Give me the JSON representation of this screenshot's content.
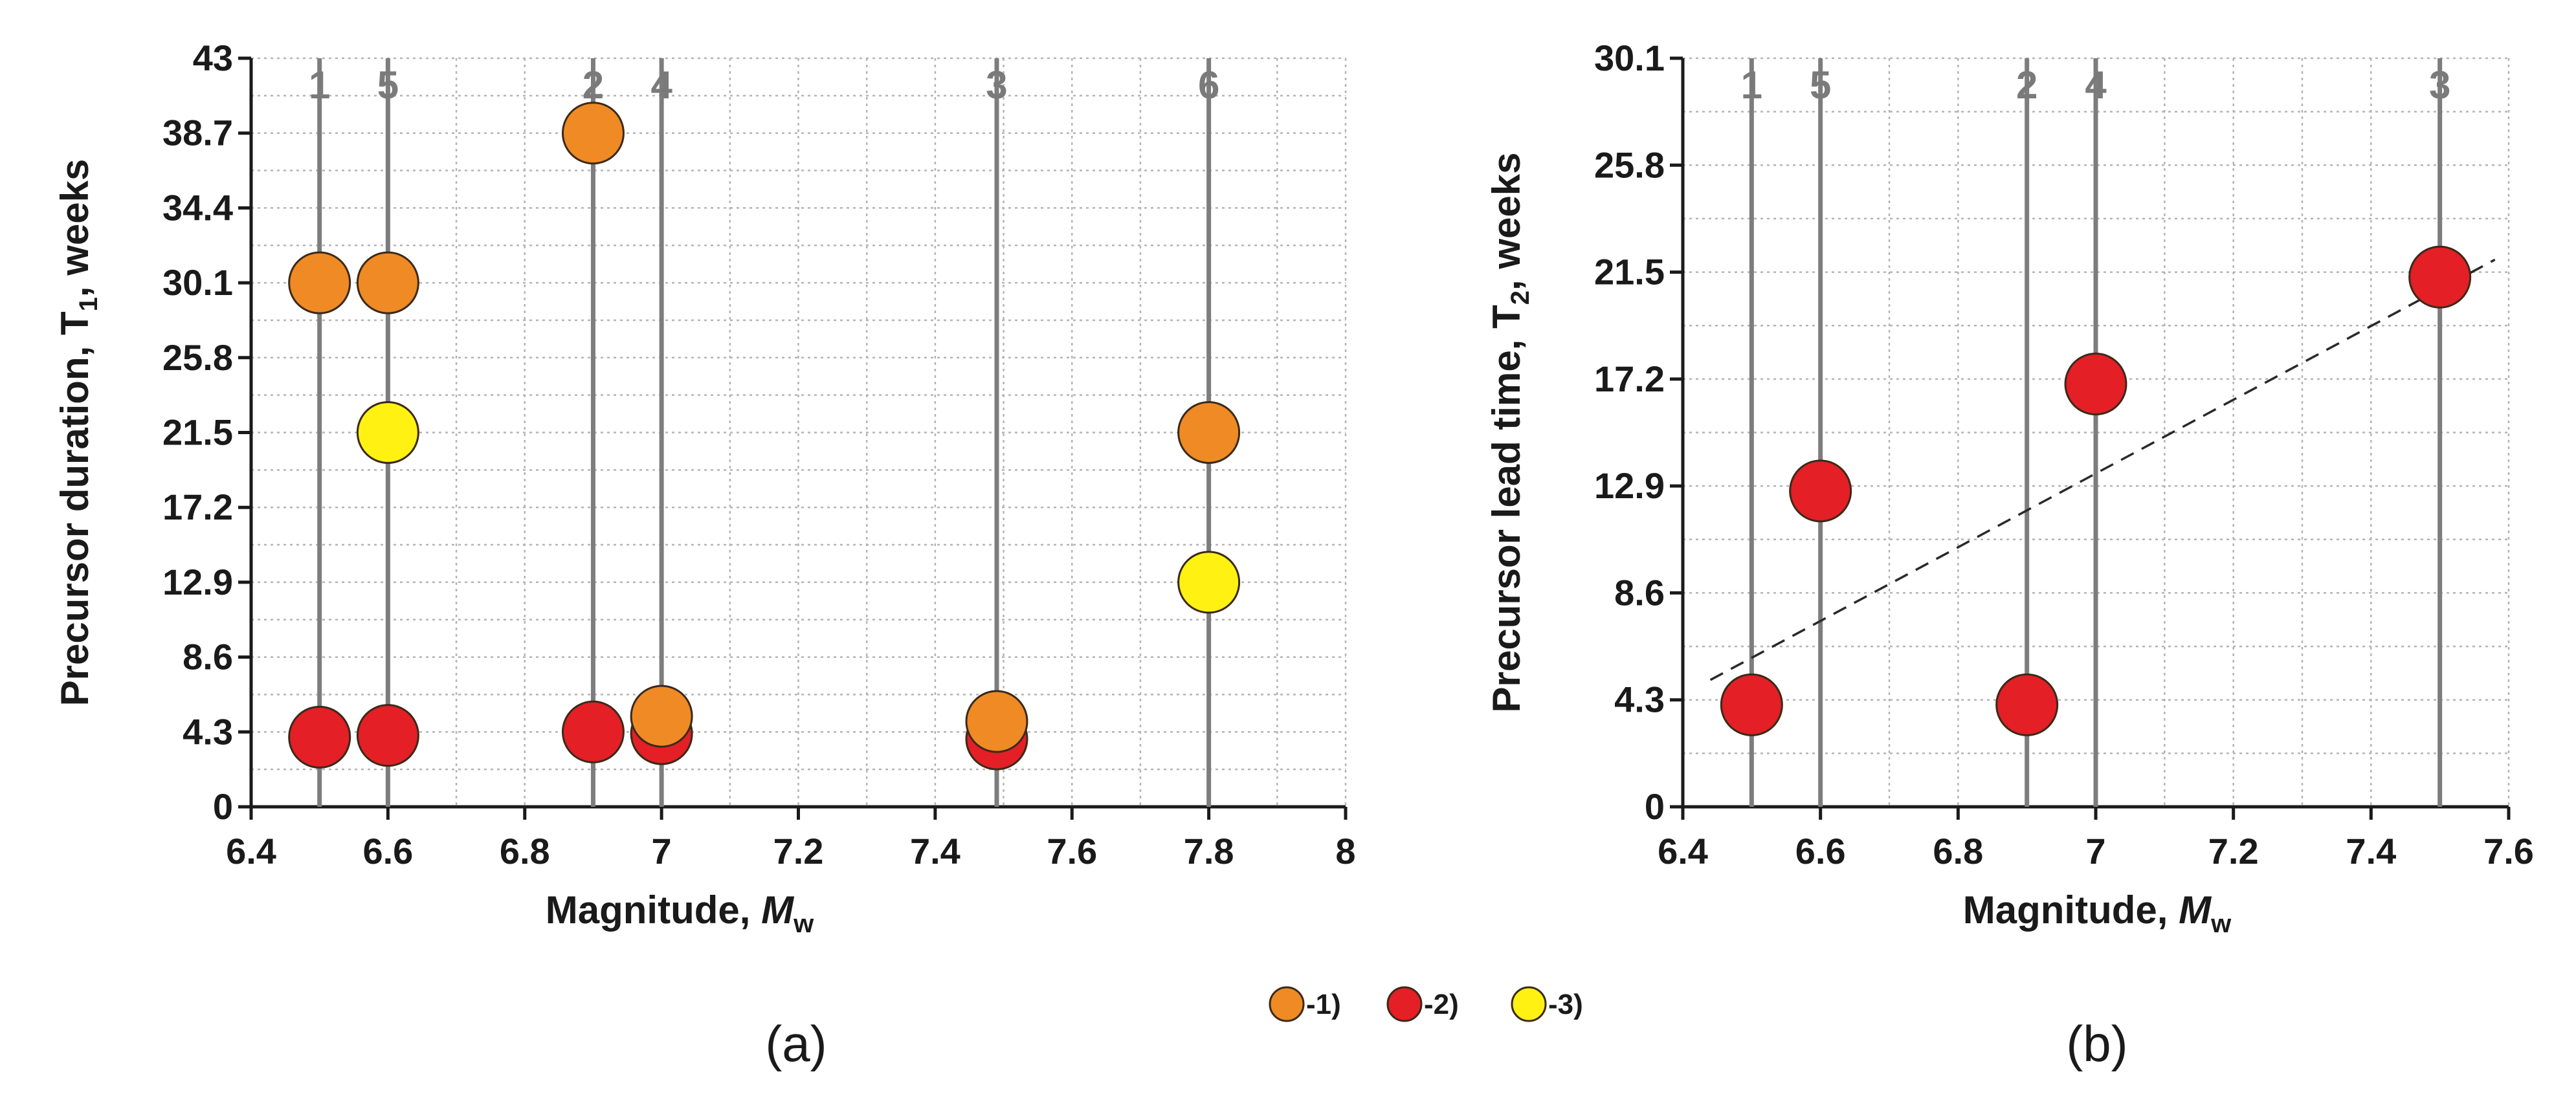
{
  "colors": {
    "series1": "#ef8a25",
    "series2": "#e41f26",
    "series3": "#fff212",
    "vline": "#7d7d7d",
    "grid": "#b4b4b4",
    "axis": "#1a1a1a",
    "vlabel": "#7a7a7a"
  },
  "legend": {
    "items": [
      {
        "label": "-1)",
        "series": 1
      },
      {
        "label": "-2)",
        "series": 2
      },
      {
        "label": "-3)",
        "series": 3
      }
    ]
  },
  "chart_data": [
    {
      "type": "scatter",
      "panel_label": "(a)",
      "xlabel_main": "Magnitude, ",
      "xlabel_symbol": "M",
      "xlabel_sub": "w",
      "ylabel_main": "Precursor duration, T",
      "ylabel_sub": "1",
      "ylabel_tail": ", weeks",
      "xlim": [
        6.4,
        8.0
      ],
      "ylim": [
        0,
        43
      ],
      "xticks": [
        6.4,
        6.6,
        6.8,
        7.0,
        7.2,
        7.4,
        7.6,
        7.8,
        8.0
      ],
      "xtick_labels": [
        "6.4",
        "6.6",
        "6.8",
        "7",
        "7.2",
        "7.4",
        "7.6",
        "7.8",
        "8"
      ],
      "yticks": [
        0,
        4.3,
        8.6,
        12.9,
        17.2,
        21.5,
        25.8,
        30.1,
        34.4,
        38.7,
        43
      ],
      "ytick_labels": [
        "0",
        "4.3",
        "8.6",
        "12.9",
        "17.2",
        "21.5",
        "25.8",
        "30.1",
        "34.4",
        "38.7",
        "43"
      ],
      "x_minor_step": 0.1,
      "y_minor_step": 2.15,
      "vertical_lines": [
        {
          "x": 6.5,
          "label": "1"
        },
        {
          "x": 6.6,
          "label": "5"
        },
        {
          "x": 6.9,
          "label": "2"
        },
        {
          "x": 7.0,
          "label": "4"
        },
        {
          "x": 7.49,
          "label": "3"
        },
        {
          "x": 7.8,
          "label": "6"
        }
      ],
      "series": [
        {
          "name": "-2)",
          "series": 2,
          "points": [
            {
              "x": 6.5,
              "y": 4.0
            },
            {
              "x": 6.6,
              "y": 4.1
            },
            {
              "x": 6.9,
              "y": 4.3
            },
            {
              "x": 7.0,
              "y": 4.2
            },
            {
              "x": 7.49,
              "y": 3.9
            }
          ]
        },
        {
          "name": "-1)",
          "series": 1,
          "points": [
            {
              "x": 6.5,
              "y": 30.1
            },
            {
              "x": 6.6,
              "y": 30.1
            },
            {
              "x": 6.9,
              "y": 38.7
            },
            {
              "x": 7.0,
              "y": 5.2
            },
            {
              "x": 7.49,
              "y": 4.9
            },
            {
              "x": 7.8,
              "y": 21.5
            }
          ]
        },
        {
          "name": "-3)",
          "series": 3,
          "points": [
            {
              "x": 6.6,
              "y": 21.5
            },
            {
              "x": 7.8,
              "y": 12.9
            }
          ]
        }
      ]
    },
    {
      "type": "scatter",
      "panel_label": "(b)",
      "xlabel_main": "Magnitude, ",
      "xlabel_symbol": "M",
      "xlabel_sub": "w",
      "ylabel_main": "Precursor lead time, T",
      "ylabel_sub": "2",
      "ylabel_tail": ", weeks",
      "xlim": [
        6.4,
        7.6
      ],
      "ylim": [
        0,
        30.1
      ],
      "xticks": [
        6.4,
        6.6,
        6.8,
        7.0,
        7.2,
        7.4,
        7.6
      ],
      "xtick_labels": [
        "6.4",
        "6.6",
        "6.8",
        "7",
        "7.2",
        "7.4",
        "7.6"
      ],
      "yticks": [
        0,
        4.3,
        8.6,
        12.9,
        17.2,
        21.5,
        25.8,
        30.1
      ],
      "ytick_labels": [
        "0",
        "4.3",
        "8.6",
        "12.9",
        "17.2",
        "21.5",
        "25.8",
        "30.1"
      ],
      "x_minor_step": 0.1,
      "y_minor_step": 2.15,
      "vertical_lines": [
        {
          "x": 6.5,
          "label": "1"
        },
        {
          "x": 6.6,
          "label": "5"
        },
        {
          "x": 6.9,
          "label": "2"
        },
        {
          "x": 7.0,
          "label": "4"
        },
        {
          "x": 7.5,
          "label": "3"
        }
      ],
      "series": [
        {
          "name": "-2)",
          "series": 2,
          "points": [
            {
              "x": 6.5,
              "y": 4.1
            },
            {
              "x": 6.6,
              "y": 12.7
            },
            {
              "x": 6.9,
              "y": 4.1
            },
            {
              "x": 7.0,
              "y": 17.0
            },
            {
              "x": 7.5,
              "y": 21.3
            }
          ]
        }
      ],
      "trendline": {
        "style": "dashed",
        "x": [
          6.44,
          7.58
        ],
        "y": [
          5.1,
          22.0
        ]
      }
    }
  ]
}
